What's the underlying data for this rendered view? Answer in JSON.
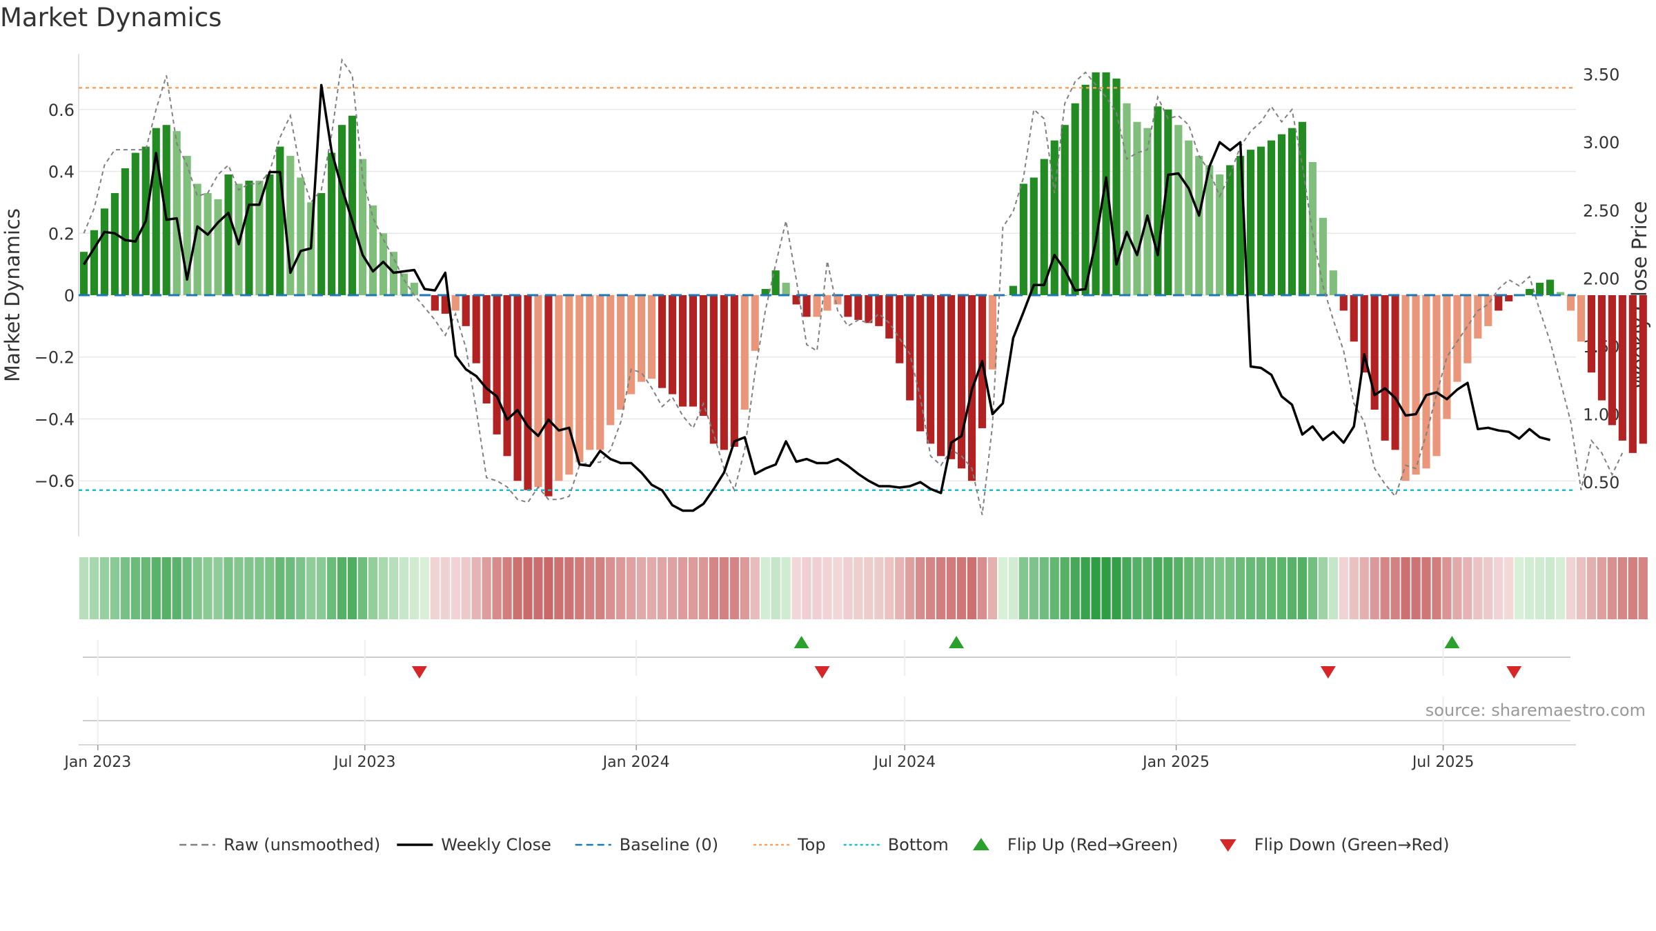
{
  "chart_data": {
    "type": "bar",
    "title": "Market Dynamics",
    "ylabel": "Market Dynamics",
    "y2label": "Weekly Close Price",
    "ylim": [
      -0.78,
      0.78
    ],
    "y2lim": [
      0.1,
      3.65
    ],
    "x_start": "2022-12-19",
    "x_end": "2025-09-29",
    "y_ticks": [
      0.6,
      0.4,
      0.2,
      0,
      -0.2,
      -0.4,
      -0.6
    ],
    "y_tick_labels": [
      "0.6",
      "0.4",
      "0.2",
      "0",
      "−0.2",
      "−0.4",
      "−0.6"
    ],
    "y2_ticks": [
      3.5,
      3.0,
      2.5,
      2.0,
      1.5,
      1.0,
      0.5
    ],
    "y2_tick_labels": [
      "3.50",
      "3.00",
      "2.50",
      "2.00",
      "1.50",
      "1.00",
      "0.50"
    ],
    "x_ticks": [
      "2023-01-01",
      "2023-07-01",
      "2024-01-01",
      "2024-07-01",
      "2025-01-01",
      "2025-07-01"
    ],
    "x_tick_labels": [
      "Jan 2023",
      "Jul 2023",
      "Jan 2024",
      "Jul 2024",
      "Jan 2025",
      "Jul 2025"
    ],
    "top_level": 0.67,
    "bottom_level": -0.63,
    "grid": true,
    "legend_position": "bottom-center",
    "colors": {
      "strong_green": "#228b22",
      "light_green": "#7fbf7b",
      "strong_red": "#b22222",
      "light_red": "#e9967a",
      "weekly_close": "#000000",
      "raw": "#808080",
      "baseline": "#1f77b4",
      "top": "#f4a460",
      "bottom": "#17becf",
      "flip_up": "#2ca02c",
      "flip_down": "#d62728",
      "source_text": "#999999"
    },
    "series": [
      {
        "name": "Market Dynamics",
        "values": [
          0.14,
          0.21,
          0.28,
          0.33,
          0.41,
          0.46,
          0.48,
          0.54,
          0.55,
          0.53,
          0.45,
          0.36,
          0.33,
          0.31,
          0.39,
          0.36,
          0.37,
          0.37,
          0.39,
          0.48,
          0.45,
          0.38,
          0.3,
          0.33,
          0.46,
          0.55,
          0.58,
          0.44,
          0.29,
          0.2,
          0.14,
          0.07,
          0.04,
          0.0,
          -0.05,
          -0.06,
          -0.05,
          -0.1,
          -0.22,
          -0.35,
          -0.45,
          -0.52,
          -0.6,
          -0.63,
          -0.62,
          -0.65,
          -0.6,
          -0.58,
          -0.54,
          -0.5,
          -0.5,
          -0.42,
          -0.37,
          -0.32,
          -0.28,
          -0.27,
          -0.3,
          -0.32,
          -0.36,
          -0.36,
          -0.39,
          -0.48,
          -0.5,
          -0.49,
          -0.37,
          -0.18,
          0.02,
          0.08,
          0.04,
          -0.03,
          -0.07,
          -0.07,
          -0.05,
          -0.03,
          -0.07,
          -0.08,
          -0.09,
          -0.1,
          -0.14,
          -0.22,
          -0.34,
          -0.44,
          -0.48,
          -0.52,
          -0.53,
          -0.56,
          -0.6,
          -0.43,
          -0.24,
          0.0,
          0.03,
          0.36,
          0.38,
          0.44,
          0.5,
          0.55,
          0.62,
          0.68,
          0.72,
          0.72,
          0.7,
          0.62,
          0.56,
          0.54,
          0.61,
          0.6,
          0.55,
          0.5,
          0.45,
          0.42,
          0.39,
          0.42,
          0.45,
          0.47,
          0.48,
          0.5,
          0.52,
          0.54,
          0.56,
          0.43,
          0.25,
          0.08,
          -0.05,
          -0.15,
          -0.25,
          -0.37,
          -0.47,
          -0.5,
          -0.6,
          -0.58,
          -0.56,
          -0.52,
          -0.4,
          -0.28,
          -0.22,
          -0.14,
          -0.1,
          -0.05,
          -0.02,
          0.0,
          0.02,
          0.04,
          0.05,
          0.01,
          -0.05,
          -0.15,
          -0.25,
          -0.34,
          -0.42,
          -0.47,
          -0.51,
          -0.48
        ],
        "strength": [
          "s",
          "s",
          "s",
          "s",
          "s",
          "s",
          "s",
          "s",
          "s",
          "w",
          "w",
          "w",
          "w",
          "w",
          "s",
          "w",
          "s",
          "w",
          "s",
          "s",
          "w",
          "w",
          "w",
          "s",
          "s",
          "s",
          "s",
          "w",
          "w",
          "w",
          "w",
          "w",
          "w",
          "w",
          "s",
          "s",
          "w",
          "s",
          "s",
          "s",
          "s",
          "s",
          "s",
          "s",
          "w",
          "s",
          "w",
          "w",
          "w",
          "w",
          "w",
          "w",
          "w",
          "w",
          "w",
          "w",
          "s",
          "s",
          "s",
          "s",
          "s",
          "s",
          "s",
          "s",
          "w",
          "w",
          "s",
          "s",
          "w",
          "s",
          "s",
          "w",
          "w",
          "w",
          "s",
          "s",
          "s",
          "s",
          "s",
          "s",
          "s",
          "s",
          "s",
          "s",
          "s",
          "s",
          "s",
          "s",
          "w",
          "w",
          "s",
          "s",
          "s",
          "s",
          "s",
          "s",
          "s",
          "s",
          "s",
          "s",
          "s",
          "w",
          "w",
          "w",
          "s",
          "s",
          "w",
          "w",
          "w",
          "w",
          "w",
          "s",
          "s",
          "s",
          "s",
          "s",
          "s",
          "s",
          "s",
          "w",
          "w",
          "w",
          "s",
          "s",
          "s",
          "s",
          "s",
          "s",
          "w",
          "w",
          "w",
          "w",
          "w",
          "w",
          "w",
          "w",
          "w",
          "s",
          "s",
          "w",
          "s",
          "s",
          "s",
          "w",
          "w",
          "w",
          "s",
          "s",
          "s",
          "s",
          "s",
          "s",
          "w"
        ]
      },
      {
        "name": "Weekly Close",
        "values": [
          2.1,
          2.22,
          2.34,
          2.33,
          2.28,
          2.27,
          2.42,
          2.92,
          2.43,
          2.44,
          1.99,
          2.38,
          2.32,
          2.41,
          2.48,
          2.25,
          2.54,
          2.54,
          2.78,
          2.78,
          2.04,
          2.2,
          2.22,
          3.42,
          2.93,
          2.66,
          2.42,
          2.17,
          2.05,
          2.12,
          2.04,
          2.05,
          2.06,
          1.92,
          1.91,
          2.04,
          1.43,
          1.33,
          1.28,
          1.19,
          1.13,
          0.96,
          1.03,
          0.91,
          0.84,
          0.96,
          0.88,
          0.9,
          0.63,
          0.62,
          0.73,
          0.67,
          0.64,
          0.64,
          0.57,
          0.48,
          0.44,
          0.33,
          0.29,
          0.29,
          0.34,
          0.45,
          0.57,
          0.8,
          0.83,
          0.56,
          0.6,
          0.63,
          0.8,
          0.65,
          0.67,
          0.64,
          0.64,
          0.67,
          0.62,
          0.56,
          0.51,
          0.47,
          0.47,
          0.46,
          0.47,
          0.5,
          0.45,
          0.42,
          0.79,
          0.84,
          1.18,
          1.39,
          1.0,
          1.08,
          1.56,
          1.75,
          1.95,
          1.95,
          2.17,
          2.06,
          1.91,
          1.92,
          2.27,
          2.74,
          2.1,
          2.34,
          2.17,
          2.46,
          2.17,
          2.76,
          2.77,
          2.66,
          2.46,
          2.82,
          3.0,
          2.94,
          3.0,
          1.35,
          1.34,
          1.29,
          1.13,
          1.07,
          0.85,
          0.91,
          0.81,
          0.87,
          0.79,
          0.91,
          1.44,
          1.14,
          1.19,
          1.12,
          0.99,
          1.0,
          1.14,
          1.16,
          1.11,
          1.18,
          1.23,
          0.89,
          0.9,
          0.88,
          0.87,
          0.82,
          0.89,
          0.83,
          0.81
        ],
        "x_start_week": 0
      },
      {
        "name": "Raw (unsmoothed)",
        "values": [
          0.2,
          0.28,
          0.42,
          0.47,
          0.47,
          0.47,
          0.47,
          0.6,
          0.71,
          0.49,
          0.42,
          0.32,
          0.33,
          0.39,
          0.42,
          0.34,
          0.36,
          0.36,
          0.4,
          0.51,
          0.58,
          0.4,
          0.3,
          0.34,
          0.52,
          0.76,
          0.71,
          0.38,
          0.25,
          0.18,
          0.12,
          0.05,
          0.0,
          -0.04,
          -0.08,
          -0.13,
          -0.06,
          -0.17,
          -0.37,
          -0.59,
          -0.6,
          -0.62,
          -0.66,
          -0.67,
          -0.62,
          -0.66,
          -0.66,
          -0.65,
          -0.55,
          -0.54,
          -0.54,
          -0.5,
          -0.41,
          -0.24,
          -0.25,
          -0.3,
          -0.36,
          -0.33,
          -0.39,
          -0.43,
          -0.35,
          -0.45,
          -0.56,
          -0.63,
          -0.5,
          -0.25,
          -0.05,
          0.1,
          0.24,
          0.05,
          -0.16,
          -0.18,
          0.11,
          -0.05,
          -0.1,
          -0.08,
          -0.09,
          -0.06,
          -0.09,
          -0.14,
          -0.19,
          -0.33,
          -0.52,
          -0.55,
          -0.5,
          -0.52,
          -0.56,
          -0.71,
          -0.42,
          0.22,
          0.27,
          0.38,
          0.6,
          0.57,
          0.33,
          0.62,
          0.69,
          0.72,
          0.68,
          0.64,
          0.59,
          0.44,
          0.46,
          0.47,
          0.64,
          0.57,
          0.58,
          0.55,
          0.45,
          0.4,
          0.32,
          0.39,
          0.48,
          0.53,
          0.56,
          0.61,
          0.56,
          0.6,
          0.42,
          0.2,
          0.03,
          -0.08,
          -0.18,
          -0.35,
          -0.41,
          -0.56,
          -0.61,
          -0.65,
          -0.55,
          -0.56,
          -0.45,
          -0.32,
          -0.2,
          -0.15,
          -0.1,
          -0.05,
          -0.03,
          0.02,
          0.05,
          0.03,
          0.06,
          -0.05,
          -0.15,
          -0.28,
          -0.41,
          -0.63,
          -0.47,
          -0.51,
          -0.58,
          -0.51
        ]
      }
    ],
    "flip_up": [
      "2024-04-22",
      "2024-08-05",
      "2025-07-07"
    ],
    "flip_down": [
      "2023-08-07",
      "2024-05-06",
      "2025-04-14",
      "2025-08-18"
    ],
    "legend": [
      {
        "label": "Raw (unsmoothed)",
        "icon": "dashed-line",
        "color": "#808080"
      },
      {
        "label": "Weekly Close",
        "icon": "solid-line",
        "color": "#000000"
      },
      {
        "label": "Baseline (0)",
        "icon": "dashed-line",
        "color": "#1f77b4"
      },
      {
        "label": "Top",
        "icon": "dotted-line",
        "color": "#f4a460"
      },
      {
        "label": "Bottom",
        "icon": "dotted-line",
        "color": "#17becf"
      },
      {
        "label": "Flip Up (Red→Green)",
        "icon": "triangle-up",
        "color": "#2ca02c"
      },
      {
        "label": "Flip Down (Green→Red)",
        "icon": "triangle-down",
        "color": "#d62728"
      }
    ],
    "source": "source: sharemaestro.com"
  }
}
